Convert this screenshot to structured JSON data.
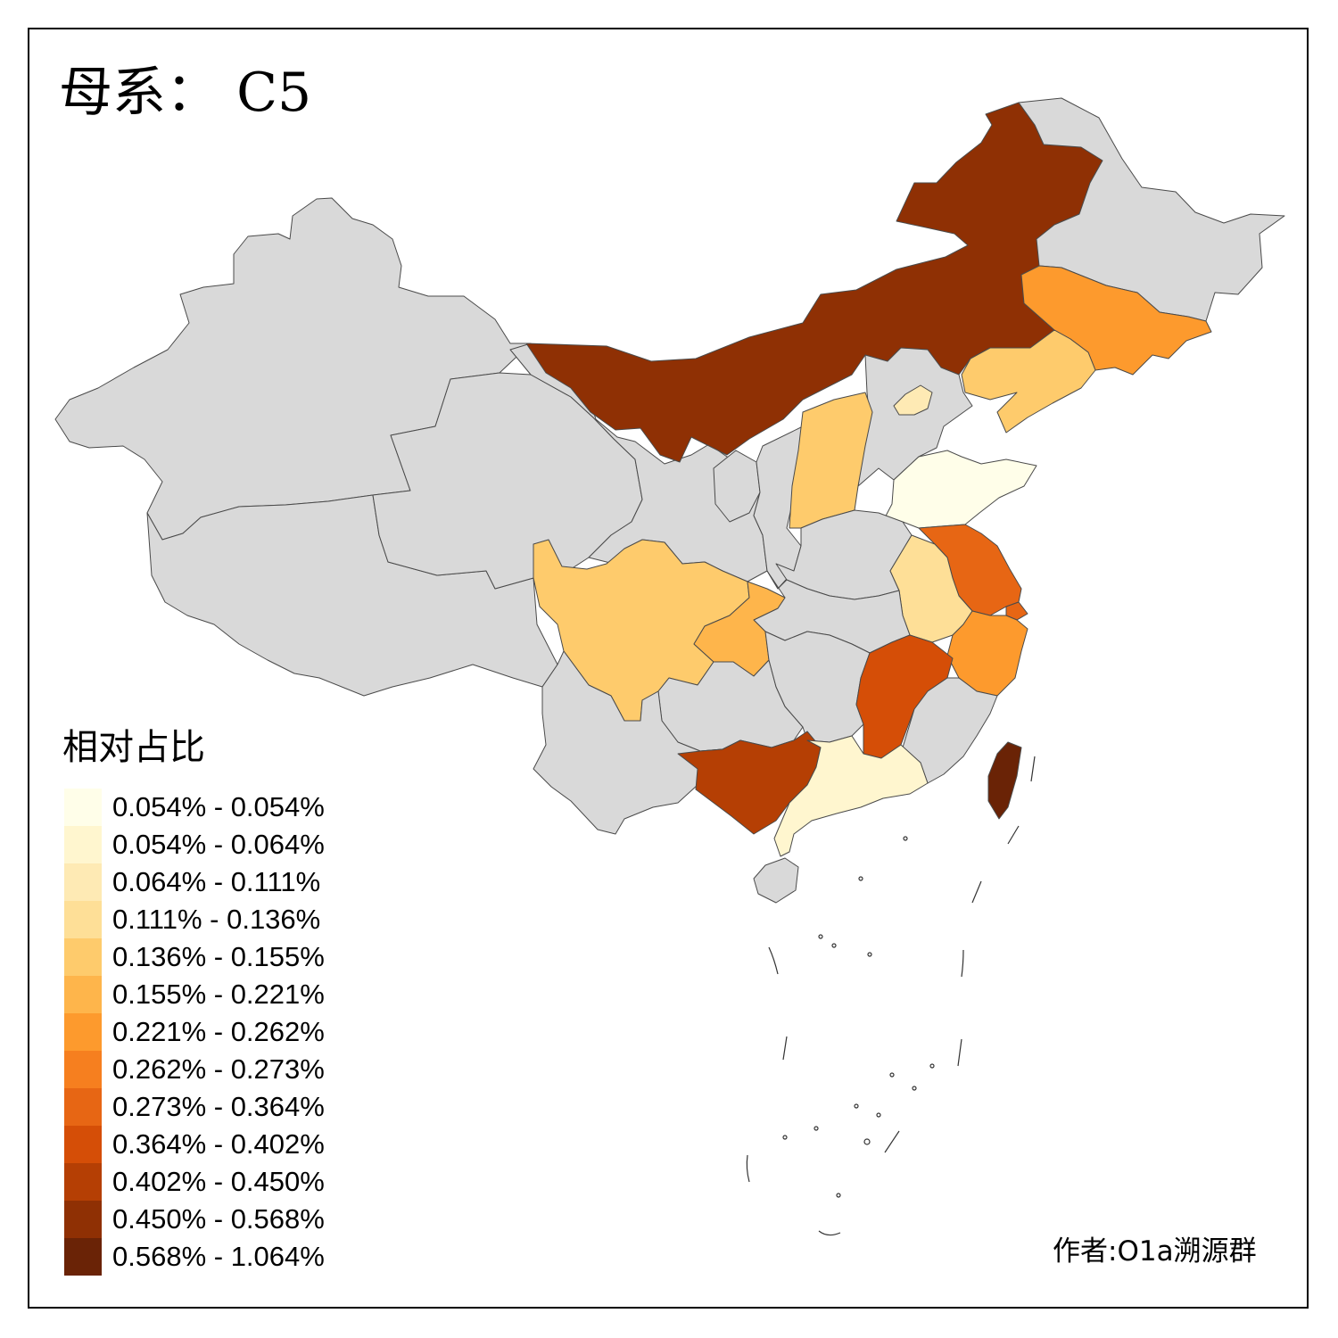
{
  "title": "母系： C5",
  "legend": {
    "title": "相对占比",
    "items": [
      {
        "label": "0.054% - 0.054%",
        "color": "#fffee9"
      },
      {
        "label": "0.054% - 0.064%",
        "color": "#fff6cf"
      },
      {
        "label": "0.064% - 0.111%",
        "color": "#feeab4"
      },
      {
        "label": "0.111% - 0.136%",
        "color": "#fedf97"
      },
      {
        "label": "0.136% - 0.155%",
        "color": "#fecb6c"
      },
      {
        "label": "0.155% - 0.221%",
        "color": "#feb54b"
      },
      {
        "label": "0.221% - 0.262%",
        "color": "#fd9a2d"
      },
      {
        "label": "0.262% - 0.273%",
        "color": "#f67f1f"
      },
      {
        "label": "0.273% - 0.364%",
        "color": "#e76614"
      },
      {
        "label": "0.364% - 0.402%",
        "color": "#d54e07"
      },
      {
        "label": "0.402% - 0.450%",
        "color": "#b53f04"
      },
      {
        "label": "0.450% - 0.568%",
        "color": "#8f3004"
      },
      {
        "label": "0.568% - 1.064%",
        "color": "#6a2306"
      }
    ]
  },
  "no_data_color": "#d9d9d9",
  "regions": [
    {
      "name": "Xinjiang",
      "class": null
    },
    {
      "name": "Tibet",
      "class": null
    },
    {
      "name": "Qinghai",
      "class": null
    },
    {
      "name": "Gansu",
      "class": null
    },
    {
      "name": "Ningxia",
      "class": null
    },
    {
      "name": "Shaanxi",
      "class": null
    },
    {
      "name": "Inner Mongolia",
      "class": 11
    },
    {
      "name": "Heilongjiang",
      "class": null
    },
    {
      "name": "Jilin",
      "class": 6
    },
    {
      "name": "Liaoning",
      "class": 4
    },
    {
      "name": "Hebei",
      "class": null
    },
    {
      "name": "Beijing",
      "class": 2
    },
    {
      "name": "Shanxi",
      "class": 4
    },
    {
      "name": "Shandong",
      "class": 0
    },
    {
      "name": "Henan",
      "class": null
    },
    {
      "name": "Jiangsu",
      "class": 8
    },
    {
      "name": "Shanghai",
      "class": 8
    },
    {
      "name": "Anhui",
      "class": 3
    },
    {
      "name": "Zhejiang",
      "class": 6
    },
    {
      "name": "Hubei",
      "class": null
    },
    {
      "name": "Sichuan",
      "class": 4
    },
    {
      "name": "Chongqing",
      "class": 5
    },
    {
      "name": "Guizhou",
      "class": null
    },
    {
      "name": "Yunnan",
      "class": null
    },
    {
      "name": "Hunan",
      "class": null
    },
    {
      "name": "Jiangxi",
      "class": 9
    },
    {
      "name": "Fujian",
      "class": null
    },
    {
      "name": "Guangxi",
      "class": 10
    },
    {
      "name": "Guangdong",
      "class": 1
    },
    {
      "name": "Hainan",
      "class": null
    },
    {
      "name": "Taiwan",
      "class": 12
    }
  ],
  "author": "作者:O1a溯源群"
}
